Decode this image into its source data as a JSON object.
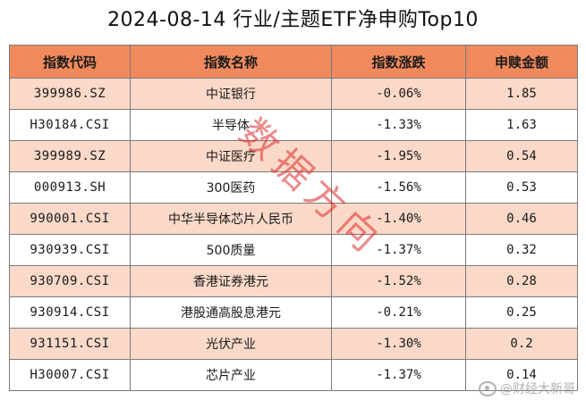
{
  "title": "2024-08-14 行业/主题ETF净申购Top10",
  "table": {
    "headers": [
      "指数代码",
      "指数名称",
      "指数涨跌",
      "申赎金额"
    ],
    "rows": [
      {
        "code": "399986.SZ",
        "name": "中证银行",
        "change": "-0.06%",
        "amount": "1.85"
      },
      {
        "code": "H30184.CSI",
        "name": "半导体",
        "change": "-1.33%",
        "amount": "1.63"
      },
      {
        "code": "399989.SZ",
        "name": "中证医疗",
        "change": "-1.95%",
        "amount": "0.54"
      },
      {
        "code": "000913.SH",
        "name": "300医药",
        "change": "-1.56%",
        "amount": "0.53"
      },
      {
        "code": "990001.CSI",
        "name": "中华半导体芯片人民币",
        "change": "-1.40%",
        "amount": "0.46"
      },
      {
        "code": "930939.CSI",
        "name": "500质量",
        "change": "-1.37%",
        "amount": "0.32"
      },
      {
        "code": "930709.CSI",
        "name": "香港证券港元",
        "change": "-1.52%",
        "amount": "0.28"
      },
      {
        "code": "930914.CSI",
        "name": "港股通高股息港元",
        "change": "-0.21%",
        "amount": "0.25"
      },
      {
        "code": "931151.CSI",
        "name": "光伏产业",
        "change": "-1.30%",
        "amount": "0.2"
      },
      {
        "code": "H30007.CSI",
        "name": "芯片产业",
        "change": "-1.37%",
        "amount": "0.14"
      }
    ]
  },
  "stamp_text": "数据方向",
  "watermark": "@财经大新哥",
  "colors": {
    "header_bg": "#f08a5d",
    "odd_row_bg": "#fbd9c8",
    "even_row_bg": "#ffffff",
    "stamp": "#dc2828"
  }
}
